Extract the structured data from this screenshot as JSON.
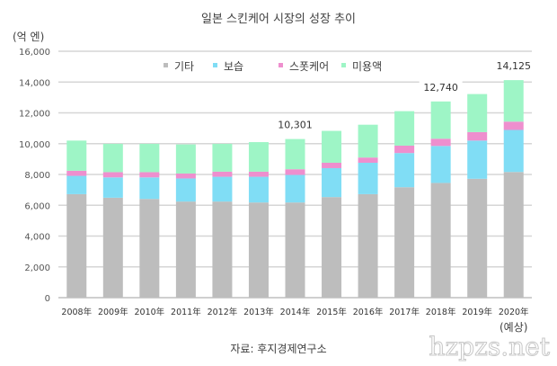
{
  "chart_data": {
    "type": "bar",
    "stacked": true,
    "title": "일본 스킨케어 시장의 성장 추이",
    "ylabel": "(억 엔)",
    "xlabel": "",
    "ylim": [
      0,
      16000
    ],
    "yticks": [
      0,
      2000,
      4000,
      6000,
      8000,
      10000,
      12000,
      14000,
      16000
    ],
    "ytick_labels": [
      "0",
      "2,000",
      "4,000",
      "6,000",
      "8,000",
      "10,000",
      "12,000",
      "14,000",
      "16,000"
    ],
    "grid": true,
    "categories": [
      "2008年",
      "2009年",
      "2010年",
      "2011年",
      "2012年",
      "2013年",
      "2014年",
      "2015年",
      "2016年",
      "2017年",
      "2018年",
      "2019年",
      "2020年"
    ],
    "category_note": {
      "index": 12,
      "text": "(예상)"
    },
    "legend_position": "top-center",
    "series": [
      {
        "name": "기타",
        "color": "#bdbdbd",
        "values": [
          6720,
          6490,
          6410,
          6240,
          6240,
          6180,
          6180,
          6530,
          6720,
          7170,
          7450,
          7720,
          8160
        ]
      },
      {
        "name": "보습",
        "color": "#80ddf5",
        "values": [
          1190,
          1320,
          1400,
          1500,
          1610,
          1670,
          1790,
          1880,
          2040,
          2220,
          2400,
          2480,
          2730
        ]
      },
      {
        "name": "스폿케어",
        "color": "#ee8fce",
        "values": [
          330,
          340,
          340,
          320,
          330,
          330,
          370,
          350,
          340,
          480,
          470,
          550,
          540
        ]
      },
      {
        "name": "미용액",
        "color": "#9ef5c6",
        "values": [
          1960,
          1840,
          1840,
          1890,
          1810,
          1920,
          1961,
          2070,
          2130,
          2240,
          2420,
          2470,
          2695
        ]
      }
    ],
    "annotations": [
      {
        "category_index": 6,
        "text": "10,301"
      },
      {
        "category_index": 10,
        "text": "12,740"
      },
      {
        "category_index": 12,
        "text": "14,125"
      }
    ],
    "source": "자료: 후지경제연구소"
  },
  "watermark": "hzpzs.net",
  "colors": {
    "gridline": "#d6d6d6",
    "axis": "#bfbfbf"
  }
}
